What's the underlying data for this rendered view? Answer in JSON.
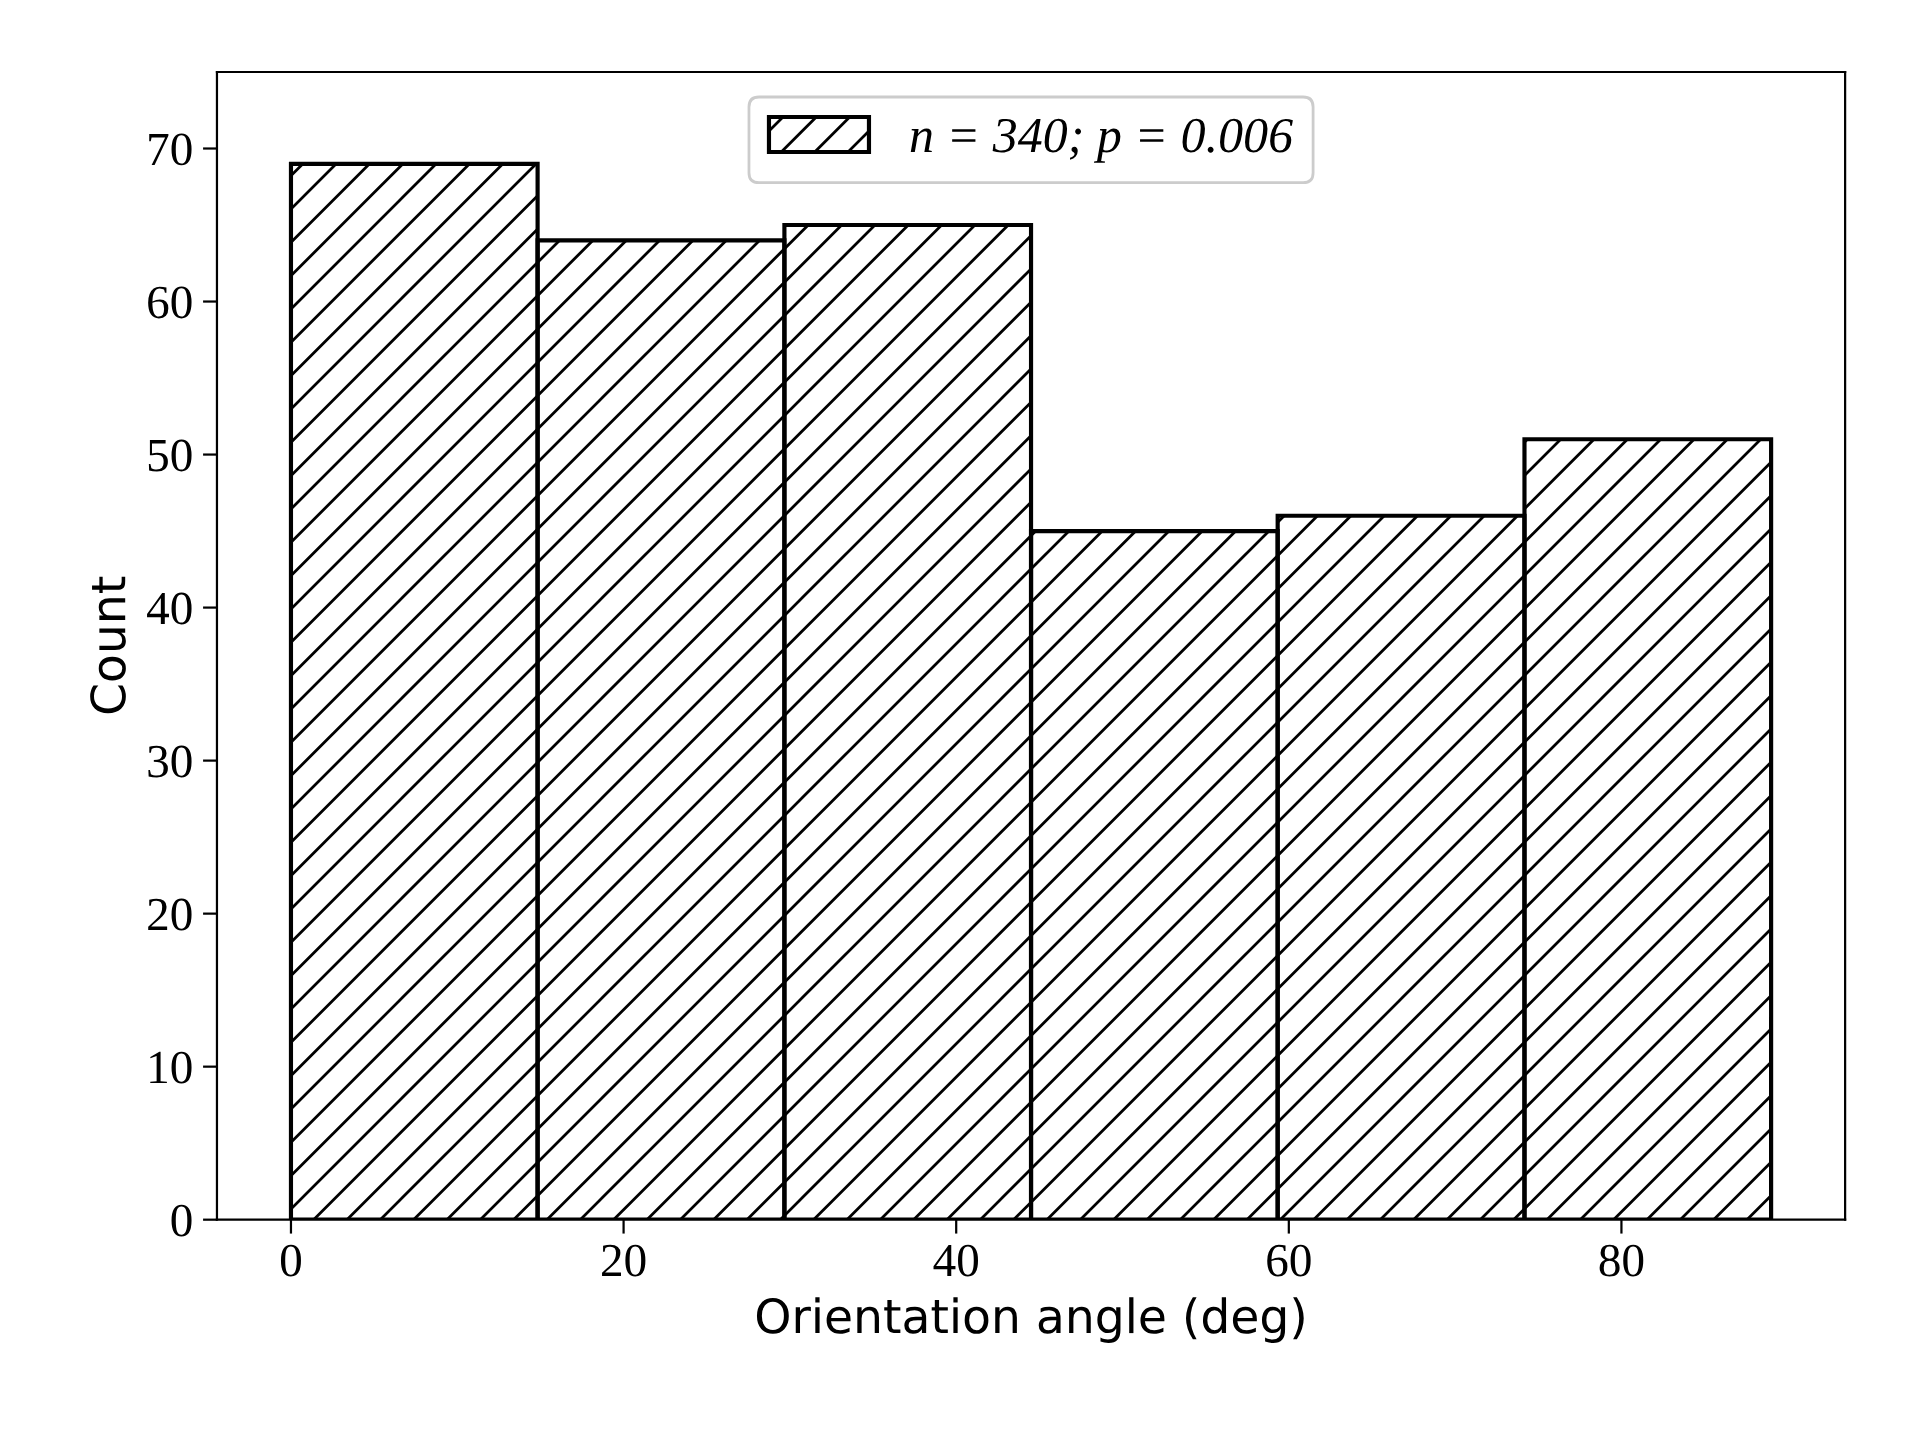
{
  "chart_data": {
    "type": "histogram",
    "xlabel": "Orientation angle (deg)",
    "ylabel": "Count",
    "bins": [
      0,
      14.83,
      29.67,
      44.5,
      59.33,
      74.17,
      89
    ],
    "series": [
      {
        "name": "n = 340; p = 0.006",
        "color": "#000000",
        "values": [
          69,
          64,
          65,
          45,
          46,
          51
        ]
      }
    ],
    "xlim": [
      -4.45,
      93.45
    ],
    "xticks": [
      0,
      20,
      40,
      60,
      80
    ],
    "ylim": [
      0,
      75
    ],
    "yticks": [
      0,
      10,
      20,
      30,
      40,
      50,
      60,
      70
    ],
    "grid": false,
    "legend": "top"
  }
}
